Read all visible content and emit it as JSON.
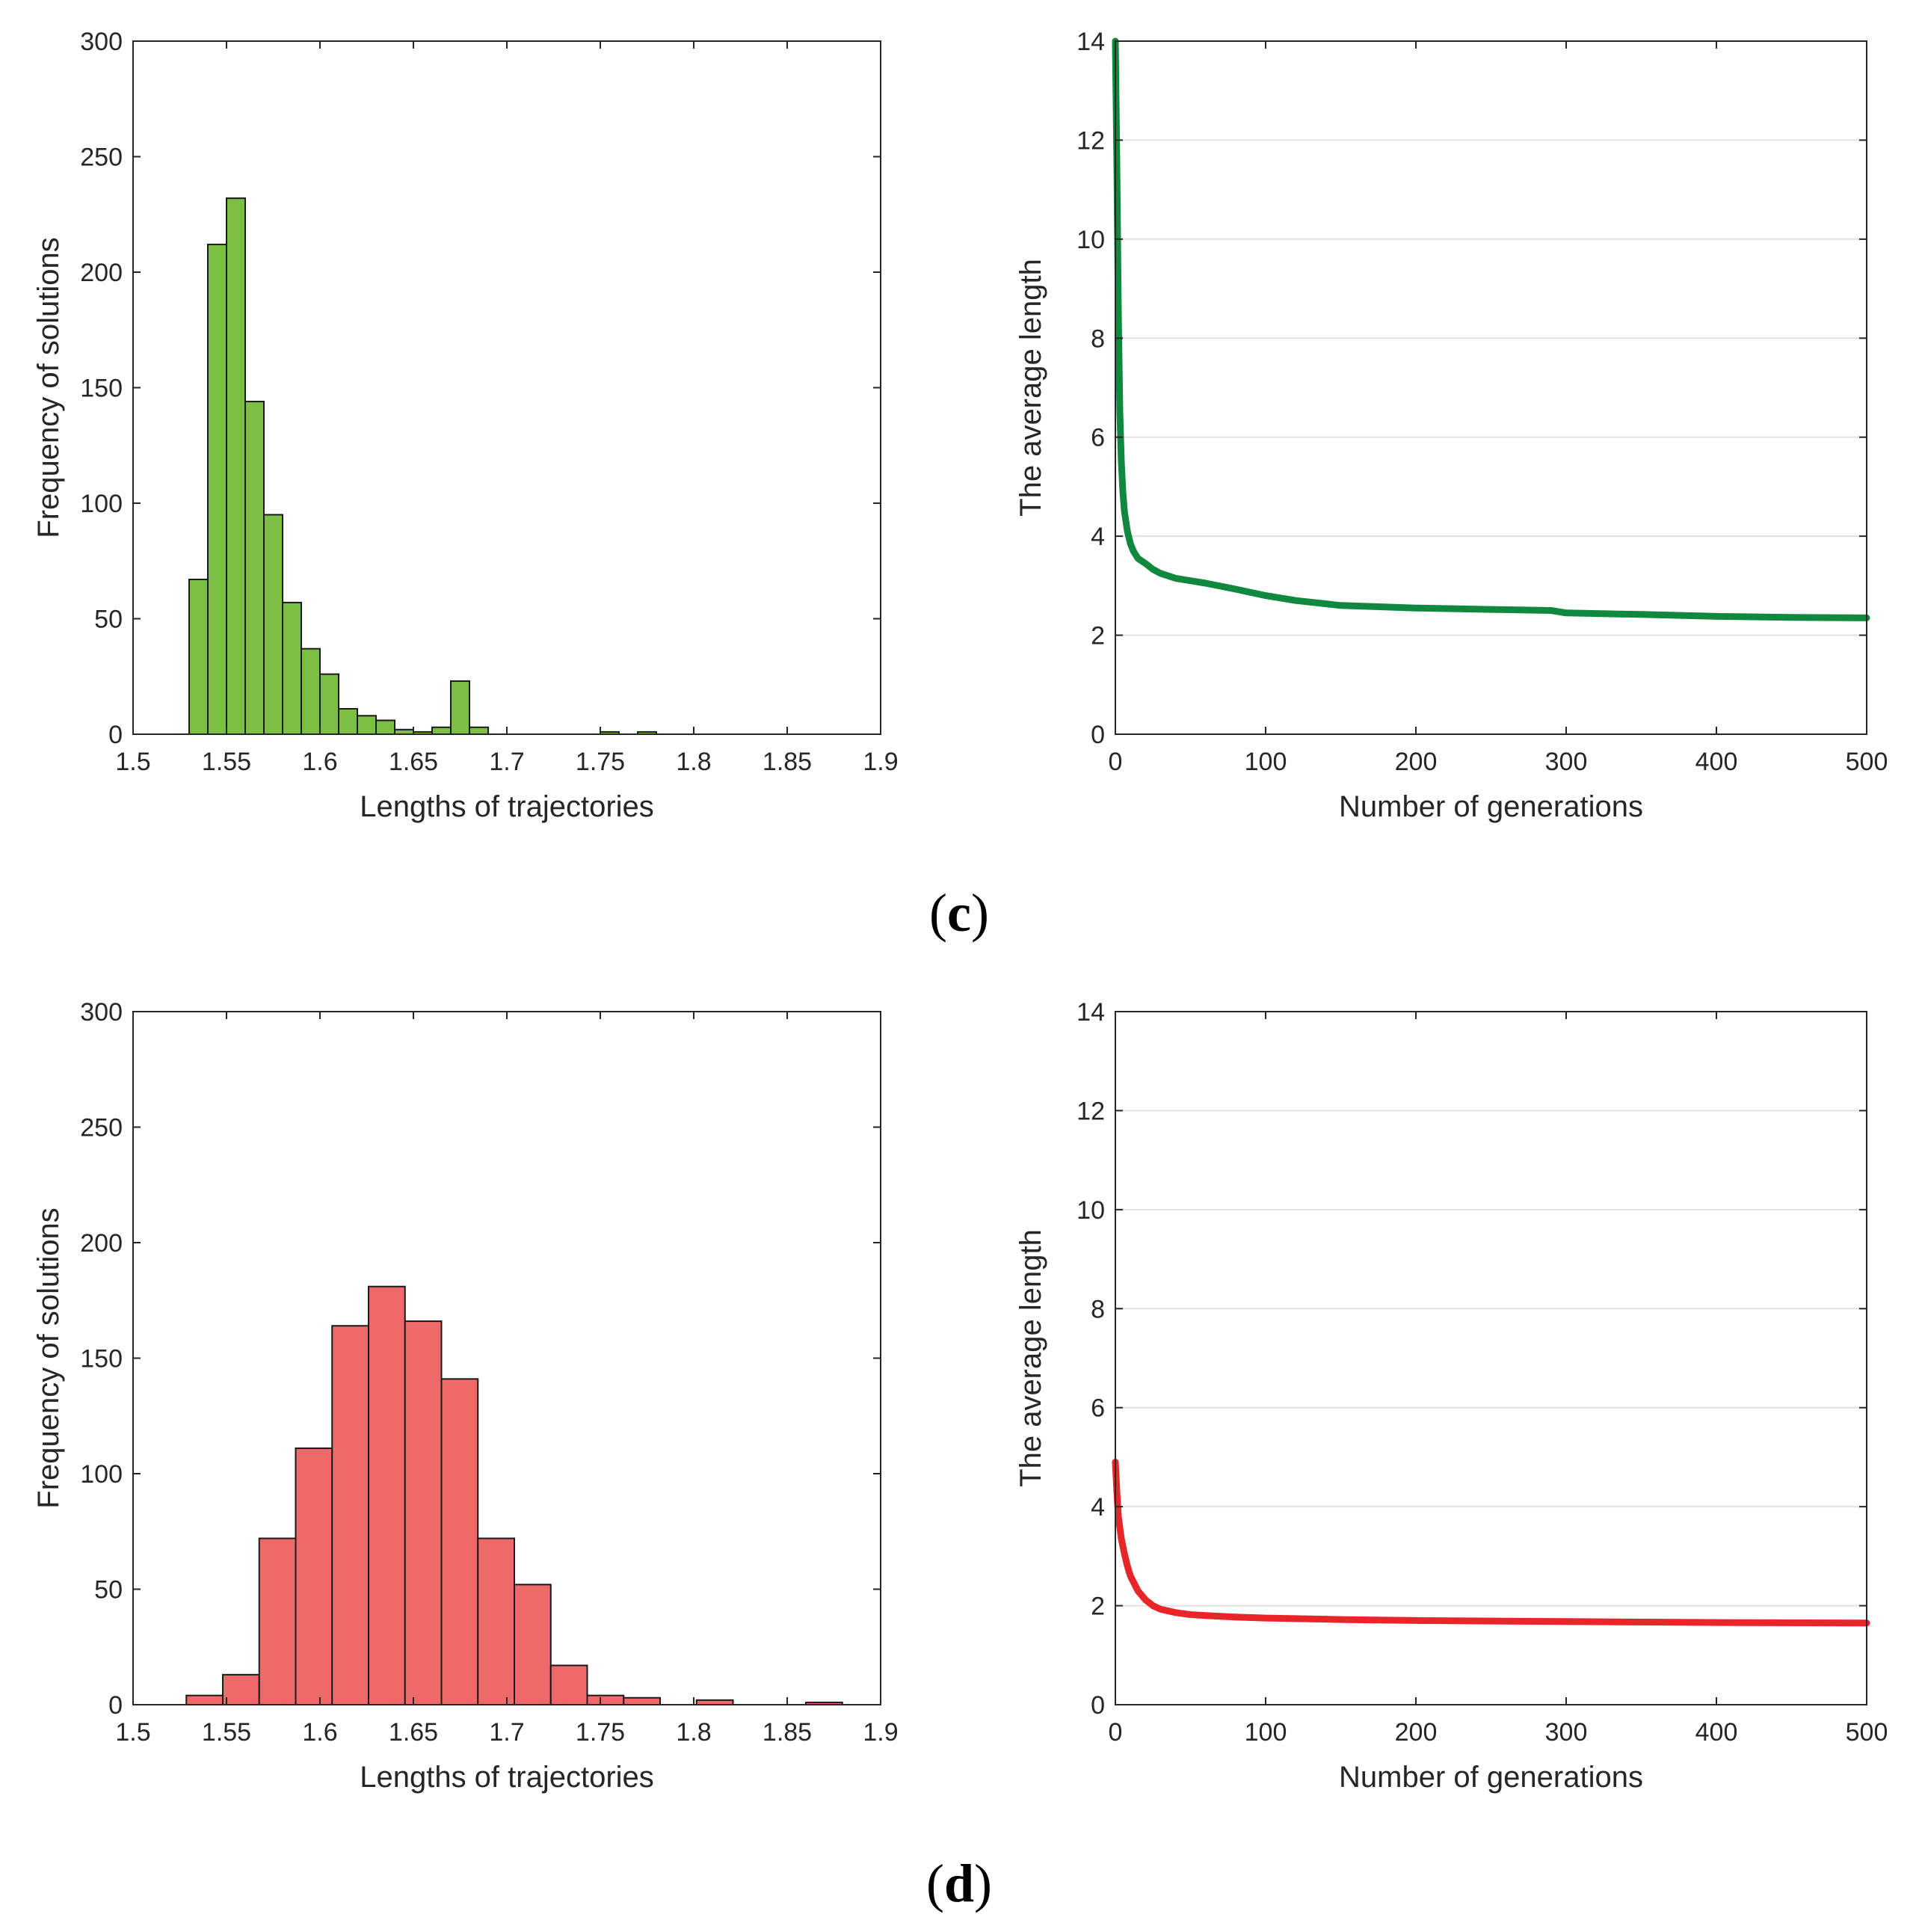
{
  "figure": {
    "panel_labels": [
      {
        "prefix": "(",
        "letter": "c",
        "suffix": ")"
      },
      {
        "prefix": "(",
        "letter": "d",
        "suffix": ")"
      }
    ]
  },
  "chart_data": [
    {
      "type": "bar",
      "title": "",
      "color": "#7dbf44",
      "xlabel": "Lengths of trajectories",
      "ylabel": "Frequency of solutions",
      "xlim": [
        1.5,
        1.9
      ],
      "ylim": [
        0,
        300
      ],
      "xticks": [
        "1.5",
        "1.55",
        "1.6",
        "1.65",
        "1.7",
        "1.75",
        "1.8",
        "1.85",
        "1.9"
      ],
      "yticks": [
        "0",
        "50",
        "100",
        "150",
        "200",
        "250",
        "300"
      ],
      "bin_width": 0.01,
      "bins": [
        {
          "start": 1.53,
          "value": 67
        },
        {
          "start": 1.54,
          "value": 212
        },
        {
          "start": 1.55,
          "value": 232
        },
        {
          "start": 1.56,
          "value": 144
        },
        {
          "start": 1.57,
          "value": 95
        },
        {
          "start": 1.58,
          "value": 57
        },
        {
          "start": 1.59,
          "value": 37
        },
        {
          "start": 1.6,
          "value": 26
        },
        {
          "start": 1.61,
          "value": 11
        },
        {
          "start": 1.62,
          "value": 8
        },
        {
          "start": 1.63,
          "value": 6
        },
        {
          "start": 1.64,
          "value": 2
        },
        {
          "start": 1.65,
          "value": 1
        },
        {
          "start": 1.66,
          "value": 3
        },
        {
          "start": 1.67,
          "value": 23
        },
        {
          "start": 1.68,
          "value": 3
        },
        {
          "start": 1.75,
          "value": 1
        },
        {
          "start": 1.77,
          "value": 1
        }
      ]
    },
    {
      "type": "line",
      "title": "",
      "color": "#10893e",
      "xlabel": "Number of generations",
      "ylabel": "The average length",
      "xlim": [
        0,
        500
      ],
      "ylim": [
        0,
        14
      ],
      "xticks": [
        "0",
        "100",
        "200",
        "300",
        "400",
        "500"
      ],
      "yticks": [
        "0",
        "2",
        "4",
        "6",
        "8",
        "10",
        "12",
        "14"
      ],
      "grid": "horizontal",
      "series": [
        {
          "name": "average length",
          "x": [
            0,
            1,
            2,
            3,
            4,
            5,
            6,
            8,
            10,
            12,
            15,
            20,
            25,
            30,
            40,
            50,
            60,
            80,
            100,
            120,
            150,
            200,
            250,
            290,
            300,
            350,
            400,
            450,
            500
          ],
          "y": [
            14,
            11.5,
            8.5,
            6.5,
            5.5,
            4.9,
            4.5,
            4.1,
            3.85,
            3.7,
            3.55,
            3.45,
            3.33,
            3.25,
            3.15,
            3.1,
            3.05,
            2.93,
            2.8,
            2.7,
            2.6,
            2.55,
            2.52,
            2.5,
            2.45,
            2.42,
            2.38,
            2.36,
            2.35
          ]
        }
      ]
    },
    {
      "type": "bar",
      "title": "",
      "color": "#ee6a6a",
      "xlabel": "Lengths of trajectories",
      "ylabel": "Frequency of solutions",
      "xlim": [
        1.5,
        1.9
      ],
      "ylim": [
        0,
        300
      ],
      "xticks": [
        "1.5",
        "1.55",
        "1.6",
        "1.65",
        "1.7",
        "1.75",
        "1.8",
        "1.85",
        "1.9"
      ],
      "yticks": [
        "0",
        "50",
        "100",
        "150",
        "200",
        "250",
        "300"
      ],
      "bin_width": 0.0195,
      "bins": [
        {
          "start": 1.5285,
          "value": 4
        },
        {
          "start": 1.548,
          "value": 13
        },
        {
          "start": 1.5675,
          "value": 72
        },
        {
          "start": 1.587,
          "value": 111
        },
        {
          "start": 1.6065,
          "value": 164
        },
        {
          "start": 1.626,
          "value": 181
        },
        {
          "start": 1.6455,
          "value": 166
        },
        {
          "start": 1.665,
          "value": 141
        },
        {
          "start": 1.6845,
          "value": 72
        },
        {
          "start": 1.704,
          "value": 52
        },
        {
          "start": 1.7235,
          "value": 17
        },
        {
          "start": 1.743,
          "value": 4
        },
        {
          "start": 1.7625,
          "value": 3
        },
        {
          "start": 1.8015,
          "value": 2
        },
        {
          "start": 1.86,
          "value": 1
        }
      ]
    },
    {
      "type": "line",
      "title": "",
      "color": "#e8262a",
      "xlabel": "Number of generations",
      "ylabel": "The average length",
      "xlim": [
        0,
        500
      ],
      "ylim": [
        0,
        14
      ],
      "xticks": [
        "0",
        "100",
        "200",
        "300",
        "400",
        "500"
      ],
      "yticks": [
        "0",
        "2",
        "4",
        "6",
        "8",
        "10",
        "12",
        "14"
      ],
      "grid": "horizontal",
      "series": [
        {
          "name": "average length",
          "x": [
            0,
            1,
            2,
            4,
            6,
            8,
            10,
            15,
            20,
            25,
            30,
            40,
            50,
            60,
            80,
            100,
            150,
            200,
            300,
            400,
            500
          ],
          "y": [
            4.9,
            4.3,
            3.8,
            3.35,
            3.05,
            2.8,
            2.6,
            2.3,
            2.12,
            2.0,
            1.93,
            1.86,
            1.82,
            1.8,
            1.77,
            1.75,
            1.72,
            1.7,
            1.68,
            1.66,
            1.65
          ]
        }
      ]
    }
  ]
}
